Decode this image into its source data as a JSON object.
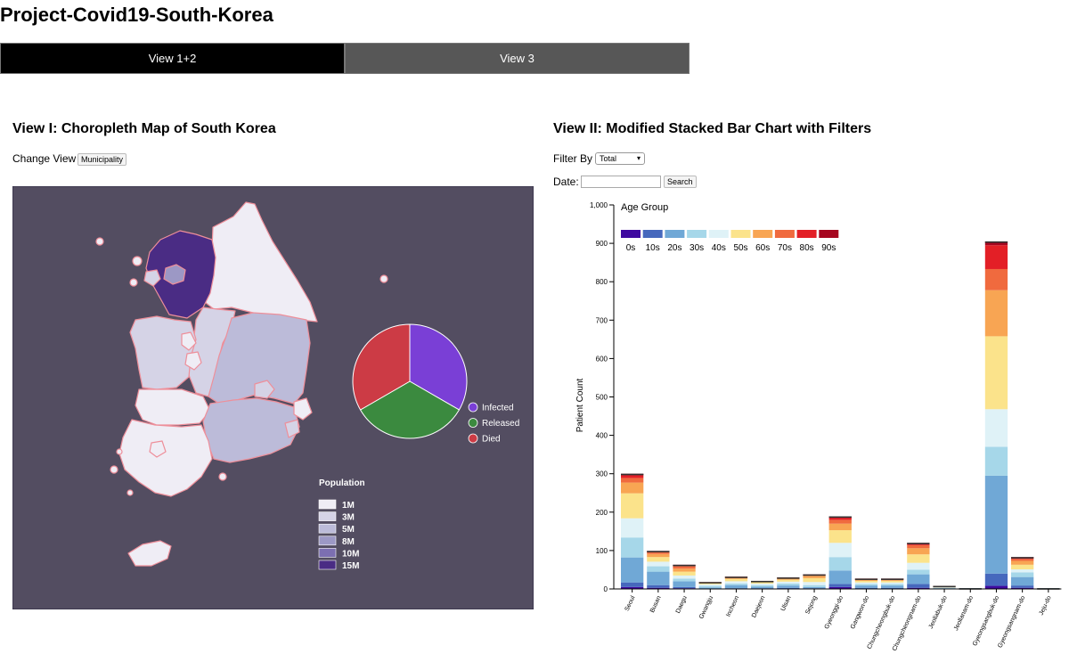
{
  "app": {
    "title": "Project-Covid19-South-Korea"
  },
  "tabs": [
    {
      "label": "View 1+2",
      "active": true
    },
    {
      "label": "View 3",
      "active": false
    }
  ],
  "view1": {
    "title": "View I: Choropleth Map of South Korea",
    "change_view_label": "Change View",
    "change_view_button": "Municipality",
    "map": {
      "background_color": "#534d61",
      "region_border_color": "#ee8f9a",
      "pie": {
        "slices": [
          {
            "label": "Infected",
            "value": 1,
            "color": "#7a3fd6"
          },
          {
            "label": "Released",
            "value": 1,
            "color": "#3b8a3f"
          },
          {
            "label": "Died",
            "value": 1,
            "color": "#cc3b45"
          }
        ]
      },
      "population_legend": {
        "title": "Population",
        "items": [
          {
            "label": "1M",
            "color": "#efedf5"
          },
          {
            "label": "3M",
            "color": "#d5d3e6"
          },
          {
            "label": "5M",
            "color": "#bcbbd9"
          },
          {
            "label": "8M",
            "color": "#9c98c5"
          },
          {
            "label": "10M",
            "color": "#7c6fb1"
          },
          {
            "label": "15M",
            "color": "#4a2c84"
          }
        ]
      }
    }
  },
  "view2": {
    "title": "View II: Modified Stacked Bar Chart with Filters",
    "filter_label": "Filter By",
    "filter_value": "Total",
    "date_label": "Date:",
    "date_value": "",
    "search_button": "Search",
    "chart_data": {
      "type": "bar",
      "stacked": true,
      "ylabel": "Patient Count",
      "ylim": [
        0,
        1000
      ],
      "yticks": [
        0,
        100,
        200,
        300,
        400,
        500,
        600,
        700,
        800,
        900,
        1000
      ],
      "ytick_labels": [
        "0",
        "100",
        "200",
        "300",
        "400",
        "500",
        "600",
        "700",
        "800",
        "900",
        "1,000"
      ],
      "legend_title": "Age Group",
      "legend_position": "top-left",
      "categories": [
        "Seoul",
        "Busan",
        "Daegu",
        "Gwangju",
        "Incheon",
        "Daejeon",
        "Ulsan",
        "Sejong",
        "Gyeonggi-do",
        "Gangwon-do",
        "Chungcheongbuk-do",
        "Chungcheongnam-do",
        "Jeollabuk-do",
        "Jeollanam-do",
        "Gyeongsangbuk-do",
        "Gyeongsangnam-do",
        "Jeju-do"
      ],
      "series": [
        {
          "name": "0s",
          "color": "#3f0aa0",
          "values": [
            5,
            3,
            2,
            0,
            1,
            1,
            1,
            1,
            5,
            1,
            1,
            3,
            0,
            0,
            8,
            3,
            0
          ]
        },
        {
          "name": "10s",
          "color": "#4668bd",
          "values": [
            12,
            7,
            3,
            1,
            1,
            1,
            2,
            1,
            8,
            2,
            2,
            10,
            0,
            0,
            32,
            6,
            0
          ]
        },
        {
          "name": "20s",
          "color": "#70a8d6",
          "values": [
            65,
            35,
            15,
            3,
            8,
            4,
            6,
            3,
            35,
            6,
            6,
            25,
            2,
            1,
            255,
            22,
            1
          ]
        },
        {
          "name": "30s",
          "color": "#a6d7e9",
          "values": [
            52,
            14,
            7,
            4,
            4,
            4,
            5,
            5,
            35,
            4,
            4,
            12,
            1,
            1,
            75,
            12,
            1
          ]
        },
        {
          "name": "40s",
          "color": "#dff2f7",
          "values": [
            50,
            12,
            8,
            4,
            6,
            4,
            5,
            8,
            37,
            4,
            4,
            18,
            1,
            0,
            98,
            8,
            0
          ]
        },
        {
          "name": "50s",
          "color": "#fbe38b",
          "values": [
            65,
            12,
            10,
            3,
            6,
            4,
            5,
            10,
            33,
            4,
            4,
            22,
            2,
            0,
            190,
            12,
            0
          ]
        },
        {
          "name": "60s",
          "color": "#f8a553",
          "values": [
            28,
            8,
            8,
            2,
            3,
            2,
            3,
            6,
            17,
            3,
            2,
            16,
            1,
            0,
            120,
            10,
            0
          ]
        },
        {
          "name": "70s",
          "color": "#f06a3e",
          "values": [
            12,
            5,
            6,
            1,
            2,
            1,
            2,
            3,
            10,
            2,
            2,
            8,
            1,
            0,
            55,
            5,
            0
          ]
        },
        {
          "name": "80s",
          "color": "#e31f26",
          "values": [
            7,
            2,
            3,
            0,
            1,
            0,
            1,
            1,
            6,
            1,
            1,
            4,
            0,
            0,
            62,
            3,
            0
          ]
        },
        {
          "name": "90s",
          "color": "#a6061f",
          "values": [
            4,
            1,
            1,
            0,
            0,
            0,
            0,
            0,
            3,
            0,
            1,
            2,
            0,
            0,
            10,
            2,
            0
          ]
        }
      ]
    }
  }
}
